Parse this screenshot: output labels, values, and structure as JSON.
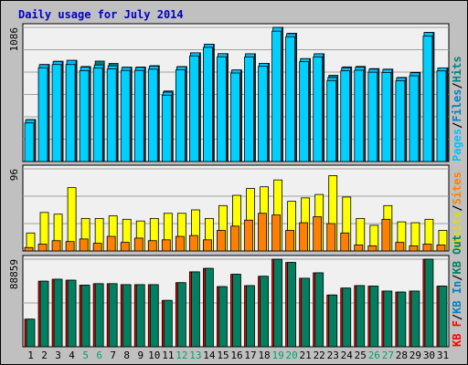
{
  "chart_data": {
    "type": "bar",
    "title": "Daily usage for July 2014",
    "colors": {
      "background": "#c0c0c0",
      "plot_background": "#f0f0f0",
      "grid": "#a0a0a0",
      "title": "#0000c0",
      "pages": "#00d0ff",
      "files": "#00c0ff",
      "hits": "#008080",
      "sites": "#ff8000",
      "visits": "#ffff00",
      "kb_f": "#ff0000",
      "kb_in": "#0080c0",
      "kb_out": "#008060",
      "weekend_label": "#00a070",
      "weekday_label": "#000000"
    },
    "categories": [
      "1",
      "2",
      "3",
      "4",
      "5",
      "6",
      "7",
      "8",
      "9",
      "10",
      "11",
      "12",
      "13",
      "14",
      "15",
      "16",
      "17",
      "18",
      "19",
      "20",
      "21",
      "22",
      "23",
      "24",
      "25",
      "26",
      "27",
      "28",
      "29",
      "30",
      "31"
    ],
    "weekend_days": [
      "5",
      "6",
      "12",
      "13",
      "19",
      "20",
      "26",
      "27"
    ],
    "panels": [
      {
        "name": "requests",
        "ylabel_max": "1086",
        "ylim": [
          0,
          1086
        ],
        "legend": [
          {
            "text": "Pages",
            "color": "#00c0ff"
          },
          {
            "text": "/",
            "color": "#000000"
          },
          {
            "text": "Files",
            "color": "#0080c0"
          },
          {
            "text": "/",
            "color": "#000000"
          },
          {
            "text": "Hits",
            "color": "#008080"
          }
        ],
        "series": [
          {
            "name": "Hits",
            "values": [
              340,
              786,
              812,
              819,
              769,
              813,
              794,
              764,
              765,
              776,
              571,
              769,
              880,
              949,
              873,
              741,
              872,
              795,
              1086,
              1038,
              833,
              872,
              698,
              766,
              770,
              752,
              748,
              681,
              722,
              1045,
              758
            ]
          },
          {
            "name": "Files",
            "values": [
              338,
              784,
              810,
              819,
              764,
              782,
              775,
              762,
              762,
              772,
              562,
              767,
              880,
              949,
              873,
              741,
              872,
              795,
              1086,
              1035,
              833,
              872,
              680,
              759,
              764,
              748,
              746,
              678,
              719,
              1045,
              758
            ]
          },
          {
            "name": "Pages",
            "values": [
              327,
              774,
              800,
              800,
              751,
              772,
              764,
              752,
              752,
              762,
              552,
              757,
              870,
              939,
              863,
              731,
              862,
              785,
              1070,
              1025,
              823,
              862,
              670,
              749,
              754,
              738,
              736,
              668,
              709,
              1031,
              748
            ]
          }
        ]
      },
      {
        "name": "visitors",
        "ylabel_max": "96",
        "ylim": [
          0,
          96
        ],
        "legend": [
          {
            "text": "Visits",
            "color": "#e0e000"
          },
          {
            "text": "/",
            "color": "#000000"
          },
          {
            "text": "Sites",
            "color": "#ff8000"
          }
        ],
        "series": [
          {
            "name": "Visits",
            "values": [
              21,
              45,
              43,
              74,
              38,
              38,
              41,
              37,
              35,
              38,
              44,
              44,
              48,
              38,
              53,
              65,
              73,
              75,
              83,
              58,
              62,
              66,
              88,
              63,
              38,
              30,
              53,
              34,
              33,
              37,
              24
            ]
          },
          {
            "name": "Sites",
            "values": [
              4,
              8,
              12,
              11,
              14,
              9,
              17,
              10,
              15,
              12,
              13,
              17,
              18,
              13,
              24,
              29,
              36,
              44,
              42,
              24,
              33,
              40,
              32,
              21,
              7,
              6,
              37,
              10,
              6,
              8,
              7
            ]
          }
        ]
      },
      {
        "name": "volume",
        "ylabel_max": "88859",
        "ylim": [
          0,
          88859
        ],
        "legend": [
          {
            "text": "KB F",
            "color": "#ff0000"
          },
          {
            "text": "/",
            "color": "#000000"
          },
          {
            "text": "KB In",
            "color": "#0080c0"
          },
          {
            "text": "/",
            "color": "#000000"
          },
          {
            "text": "KB Out",
            "color": "#008060"
          }
        ],
        "series": [
          {
            "name": "KB F",
            "values": [
              28000,
              66500,
              68500,
              67500,
              62500,
              64000,
              64000,
              63000,
              63000,
              63000,
              47000,
              65000,
              76000,
              79500,
              61000,
              73500,
              62000,
              71500,
              88859,
              85500,
              69500,
              75000,
              52500,
              59500,
              62000,
              61500,
              56500,
              55500,
              56500,
              88859,
              61500
            ]
          },
          {
            "name": "KB Out",
            "values": [
              28000,
              66500,
              68500,
              67500,
              62500,
              64000,
              64000,
              63000,
              63000,
              63000,
              47000,
              65000,
              76000,
              79500,
              61000,
              73500,
              62000,
              71500,
              88859,
              85500,
              69500,
              75000,
              52500,
              59500,
              62000,
              61500,
              56500,
              55500,
              56500,
              88859,
              61500
            ]
          }
        ]
      }
    ]
  }
}
